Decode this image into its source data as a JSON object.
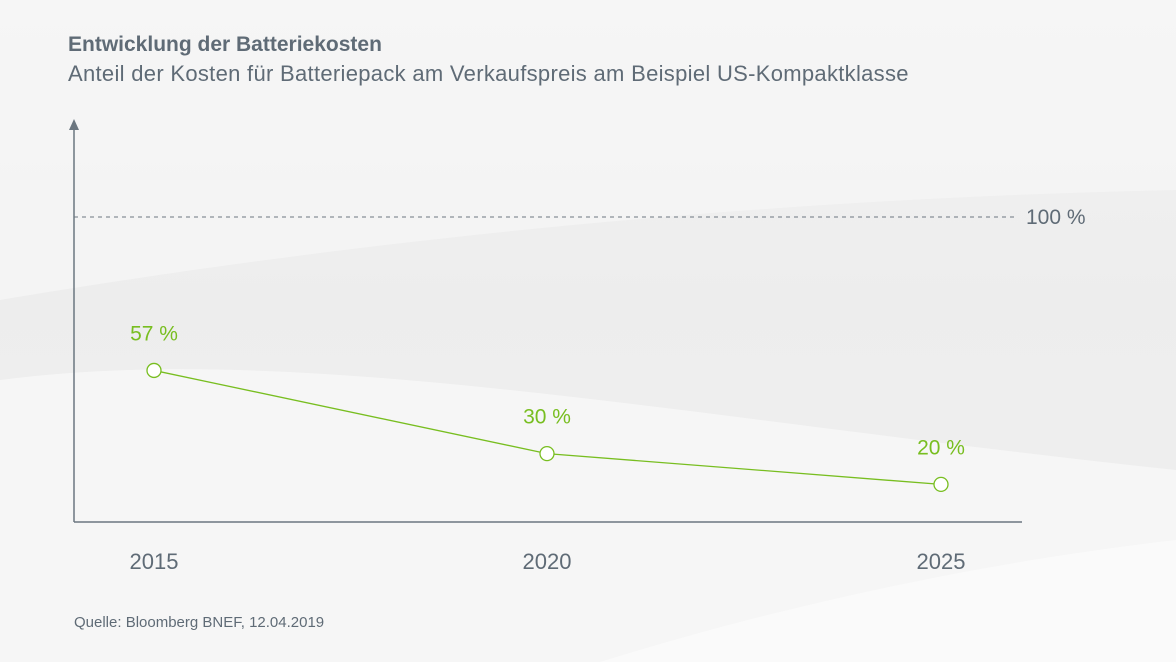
{
  "title": "Entwicklung der Batteriekosten",
  "subtitle": "Anteil der Kosten für Batteriepack am Verkaufspreis am Beispiel US-Kompaktklasse",
  "source": "Quelle: Bloomberg BNEF, 12.04.2019",
  "colors": {
    "series": "#78be20",
    "text": "#5f6b76",
    "axis": "#6b7680"
  },
  "chart_data": {
    "type": "line",
    "categories": [
      "2015",
      "2020",
      "2025"
    ],
    "values": [
      57,
      30,
      20
    ],
    "data_labels": [
      "57 %",
      "30 %",
      "20 %"
    ],
    "reference_line": {
      "value": 100,
      "label": "100 %",
      "style": "dashed"
    },
    "grid": false,
    "legend": "none"
  }
}
